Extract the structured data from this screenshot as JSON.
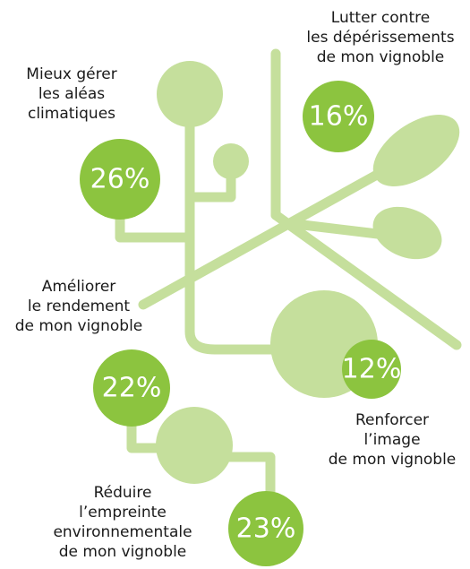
{
  "items": [
    {
      "label": [
        "Mieux gérer",
        "les aléas",
        "climatiques"
      ],
      "value": "26%"
    },
    {
      "label": [
        "Lutter contre",
        "les dépérissements",
        "de mon vignoble"
      ],
      "value": "16%"
    },
    {
      "label": [
        "Améliorer",
        "le rendement",
        "de mon vignoble"
      ],
      "value": "22%"
    },
    {
      "label": [
        "Renforcer",
        "l’image",
        "de mon vignoble"
      ],
      "value": "12%"
    },
    {
      "label": [
        "Réduire",
        "l’empreinte",
        "environnementale",
        "de mon vignoble"
      ],
      "value": "23%"
    }
  ]
}
